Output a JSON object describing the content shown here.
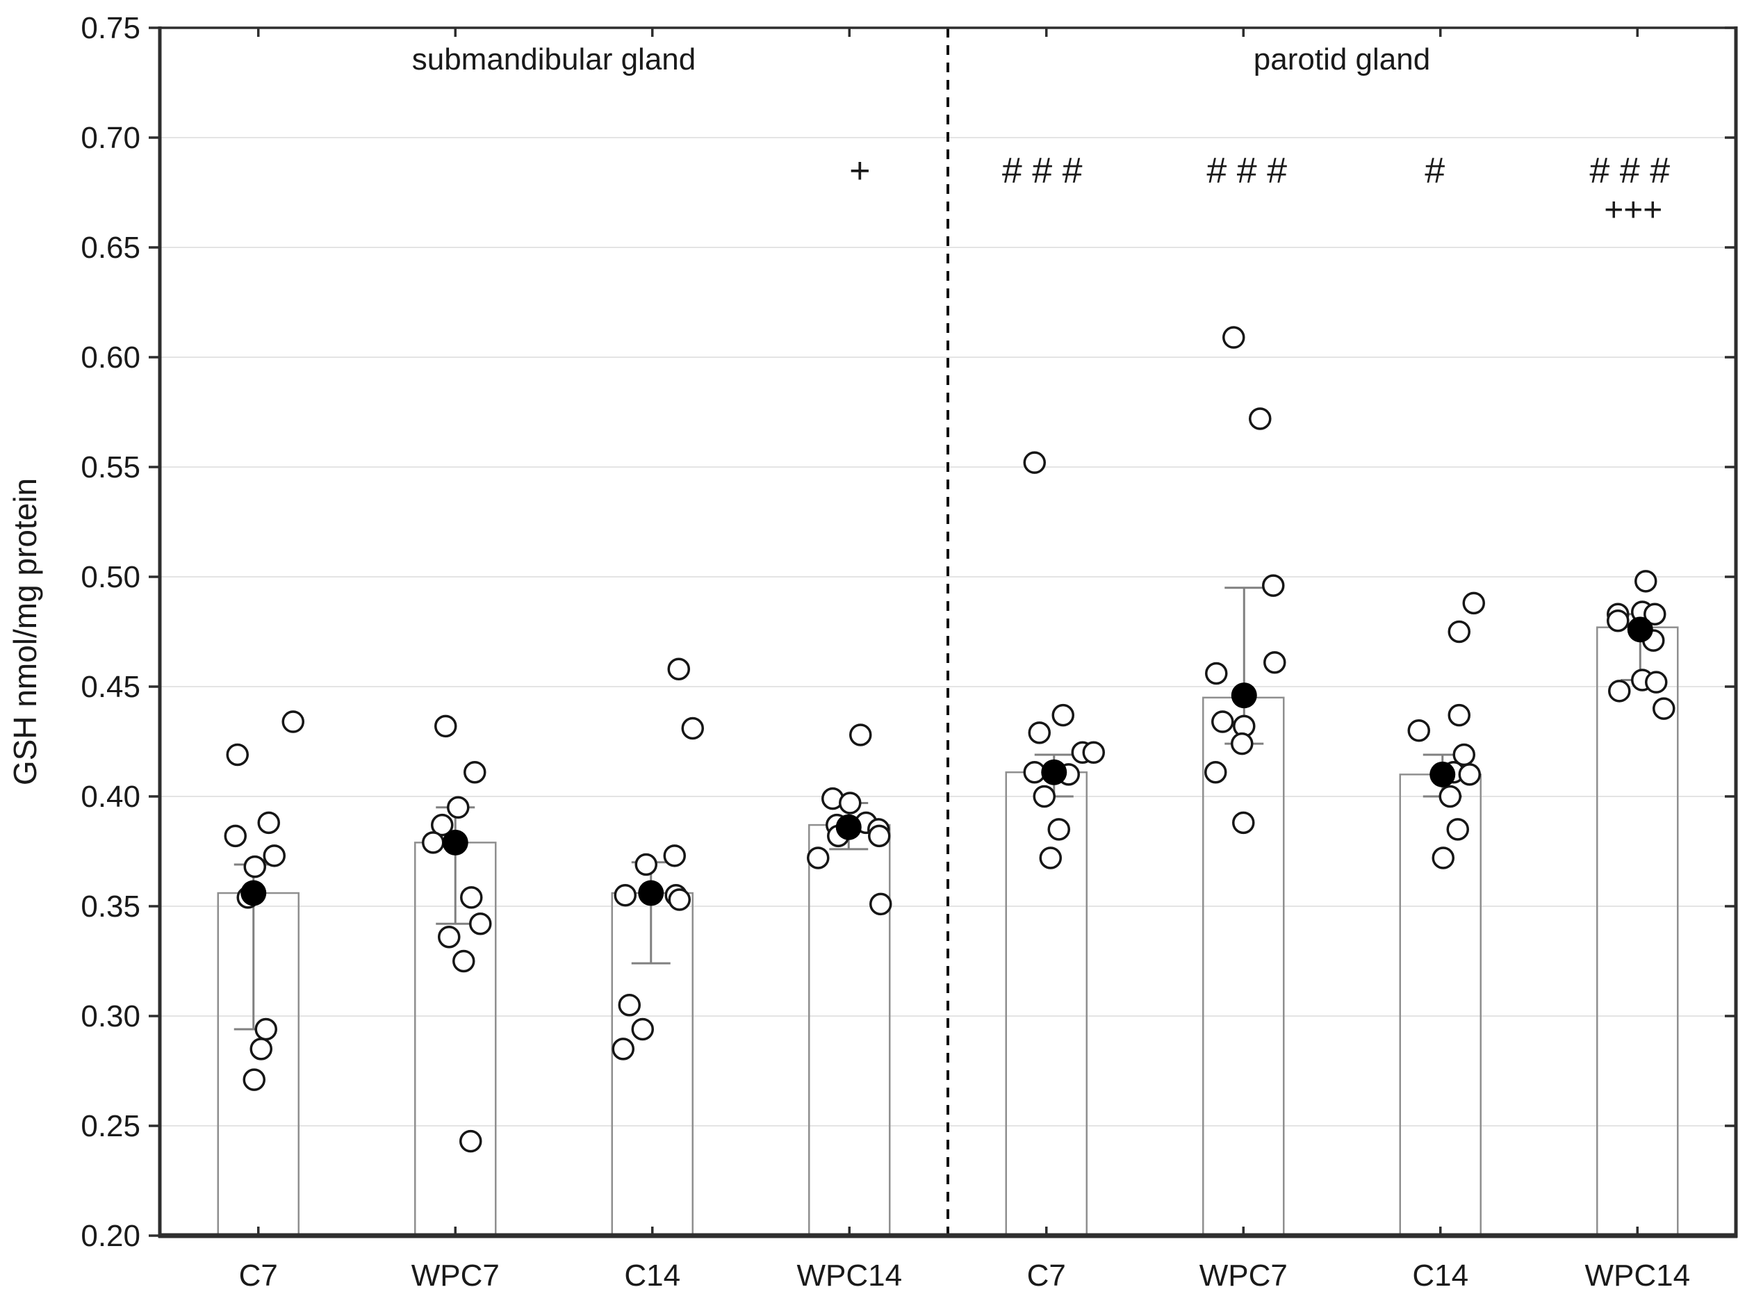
{
  "chart_data": {
    "type": "bar",
    "title": "",
    "ylabel": "GSH nmol/mg protein",
    "xlabel": "",
    "ylim": [
      0.2,
      0.75
    ],
    "grid": true,
    "legend": "none",
    "marker_styles": {
      "open_circle": "individual data point",
      "filled_circle": "group mean",
      "whiskers": "error bar caps",
      "bar": "mean bar outline"
    },
    "colors": {
      "frame": "#2e2e2e",
      "gridline": "#e4e4e4",
      "bar_outline": "#8f8f8f",
      "error_bar": "#808080",
      "point_stroke": "#161616",
      "mean_fill": "#000000",
      "text": "#1a1a1a",
      "background": "#ffffff"
    },
    "yticks": [
      "0.75",
      "0.70",
      "0.65",
      "0.60",
      "0.55",
      "0.50",
      "0.45",
      "0.40",
      "0.35",
      "0.30",
      "0.25",
      "0.20"
    ],
    "ytick_values": [
      0.75,
      0.7,
      0.65,
      0.6,
      0.55,
      0.5,
      0.45,
      0.4,
      0.35,
      0.3,
      0.25,
      0.2
    ],
    "sections": [
      {
        "label": "submandibular gland",
        "center_slot": 2
      },
      {
        "label": "parotid gland",
        "center_slot": 6
      }
    ],
    "divider_slot": 4,
    "groups": [
      {
        "label": "C7",
        "section": 0,
        "bar": 0.356,
        "mean": 0.356,
        "mean_dx": -7,
        "whisker_low": 0.294,
        "whisker_high": 0.369,
        "annotations": [],
        "points": [
          {
            "dx": 50,
            "v": 0.434
          },
          {
            "dx": -30,
            "v": 0.419
          },
          {
            "dx": 15,
            "v": 0.388
          },
          {
            "dx": -33,
            "v": 0.382
          },
          {
            "dx": 23,
            "v": 0.373
          },
          {
            "dx": -5,
            "v": 0.368
          },
          {
            "dx": -15,
            "v": 0.354
          },
          {
            "dx": 11,
            "v": 0.294
          },
          {
            "dx": 4,
            "v": 0.285
          },
          {
            "dx": -6,
            "v": 0.271
          }
        ]
      },
      {
        "label": "WPC7",
        "section": 0,
        "bar": 0.379,
        "mean": 0.379,
        "mean_dx": 0,
        "whisker_low": 0.342,
        "whisker_high": 0.395,
        "annotations": [],
        "points": [
          {
            "dx": -14,
            "v": 0.432
          },
          {
            "dx": 28,
            "v": 0.411
          },
          {
            "dx": 4,
            "v": 0.395
          },
          {
            "dx": -19,
            "v": 0.387
          },
          {
            "dx": -32,
            "v": 0.379
          },
          {
            "dx": 23,
            "v": 0.354
          },
          {
            "dx": 36,
            "v": 0.342
          },
          {
            "dx": -9,
            "v": 0.336
          },
          {
            "dx": 12,
            "v": 0.325
          },
          {
            "dx": 22,
            "v": 0.243
          }
        ]
      },
      {
        "label": "C14",
        "section": 0,
        "bar": 0.356,
        "mean": 0.356,
        "mean_dx": -2,
        "whisker_low": 0.324,
        "whisker_high": 0.37,
        "annotations": [],
        "points": [
          {
            "dx": 38,
            "v": 0.458
          },
          {
            "dx": 58,
            "v": 0.431
          },
          {
            "dx": 32,
            "v": 0.373
          },
          {
            "dx": -9,
            "v": 0.369
          },
          {
            "dx": -39,
            "v": 0.355
          },
          {
            "dx": 34,
            "v": 0.355
          },
          {
            "dx": 39,
            "v": 0.353
          },
          {
            "dx": -33,
            "v": 0.305
          },
          {
            "dx": -14,
            "v": 0.294
          },
          {
            "dx": -42,
            "v": 0.285
          }
        ]
      },
      {
        "label": "WPC14",
        "section": 0,
        "bar": 0.387,
        "mean": 0.386,
        "mean_dx": -1,
        "whisker_low": 0.376,
        "whisker_high": 0.397,
        "annotations": [
          {
            "text": "+",
            "row": 1,
            "dx": 15
          }
        ],
        "points": [
          {
            "dx": 16,
            "v": 0.428
          },
          {
            "dx": -24,
            "v": 0.399
          },
          {
            "dx": 1,
            "v": 0.397
          },
          {
            "dx": 24,
            "v": 0.388
          },
          {
            "dx": -18,
            "v": 0.387
          },
          {
            "dx": 42,
            "v": 0.385
          },
          {
            "dx": -16,
            "v": 0.382
          },
          {
            "dx": 43,
            "v": 0.382
          },
          {
            "dx": -45,
            "v": 0.372
          },
          {
            "dx": 45,
            "v": 0.351
          }
        ]
      },
      {
        "label": "C7",
        "section": 1,
        "bar": 0.411,
        "mean": 0.411,
        "mean_dx": 11,
        "whisker_low": 0.4,
        "whisker_high": 0.419,
        "annotations": [
          {
            "text": "# # #",
            "row": 1,
            "dx": -6
          }
        ],
        "points": [
          {
            "dx": -17,
            "v": 0.552
          },
          {
            "dx": 24,
            "v": 0.437
          },
          {
            "dx": -10,
            "v": 0.429
          },
          {
            "dx": 52,
            "v": 0.42
          },
          {
            "dx": 68,
            "v": 0.42
          },
          {
            "dx": -17,
            "v": 0.411
          },
          {
            "dx": 32,
            "v": 0.41
          },
          {
            "dx": -3,
            "v": 0.4
          },
          {
            "dx": 18,
            "v": 0.385
          },
          {
            "dx": 6,
            "v": 0.372
          }
        ]
      },
      {
        "label": "WPC7",
        "section": 1,
        "bar": 0.445,
        "mean": 0.446,
        "mean_dx": 1,
        "whisker_low": 0.424,
        "whisker_high": 0.495,
        "annotations": [
          {
            "text": "# # #",
            "row": 1,
            "dx": 5
          }
        ],
        "points": [
          {
            "dx": -14,
            "v": 0.609
          },
          {
            "dx": 24,
            "v": 0.572
          },
          {
            "dx": 43,
            "v": 0.496
          },
          {
            "dx": 45,
            "v": 0.461
          },
          {
            "dx": -39,
            "v": 0.456
          },
          {
            "dx": -30,
            "v": 0.434
          },
          {
            "dx": 1,
            "v": 0.432
          },
          {
            "dx": -2,
            "v": 0.424
          },
          {
            "dx": -40,
            "v": 0.411
          },
          {
            "dx": 0,
            "v": 0.388
          }
        ]
      },
      {
        "label": "C14",
        "section": 1,
        "bar": 0.41,
        "mean": 0.41,
        "mean_dx": 3,
        "whisker_low": 0.4,
        "whisker_high": 0.419,
        "annotations": [
          {
            "text": "#",
            "row": 1,
            "dx": -8
          }
        ],
        "points": [
          {
            "dx": 48,
            "v": 0.488
          },
          {
            "dx": 27,
            "v": 0.475
          },
          {
            "dx": 27,
            "v": 0.437
          },
          {
            "dx": -31,
            "v": 0.43
          },
          {
            "dx": 34,
            "v": 0.419
          },
          {
            "dx": 19,
            "v": 0.411
          },
          {
            "dx": 42,
            "v": 0.41
          },
          {
            "dx": 14,
            "v": 0.4
          },
          {
            "dx": 25,
            "v": 0.385
          },
          {
            "dx": 4,
            "v": 0.372
          }
        ]
      },
      {
        "label": "WPC14",
        "section": 1,
        "bar": 0.477,
        "mean": 0.476,
        "mean_dx": 4,
        "whisker_low": 0.453,
        "whisker_high": 0.483,
        "annotations": [
          {
            "text": "# # #",
            "row": 1,
            "dx": -11
          },
          {
            "text": "+++",
            "row": 2,
            "dx": -6
          }
        ],
        "points": [
          {
            "dx": 12,
            "v": 0.498
          },
          {
            "dx": 7,
            "v": 0.484
          },
          {
            "dx": 25,
            "v": 0.483
          },
          {
            "dx": -28,
            "v": 0.483
          },
          {
            "dx": -28,
            "v": 0.48
          },
          {
            "dx": 23,
            "v": 0.471
          },
          {
            "dx": 7,
            "v": 0.453
          },
          {
            "dx": 27,
            "v": 0.452
          },
          {
            "dx": -26,
            "v": 0.448
          },
          {
            "dx": 38,
            "v": 0.44
          }
        ]
      }
    ]
  }
}
